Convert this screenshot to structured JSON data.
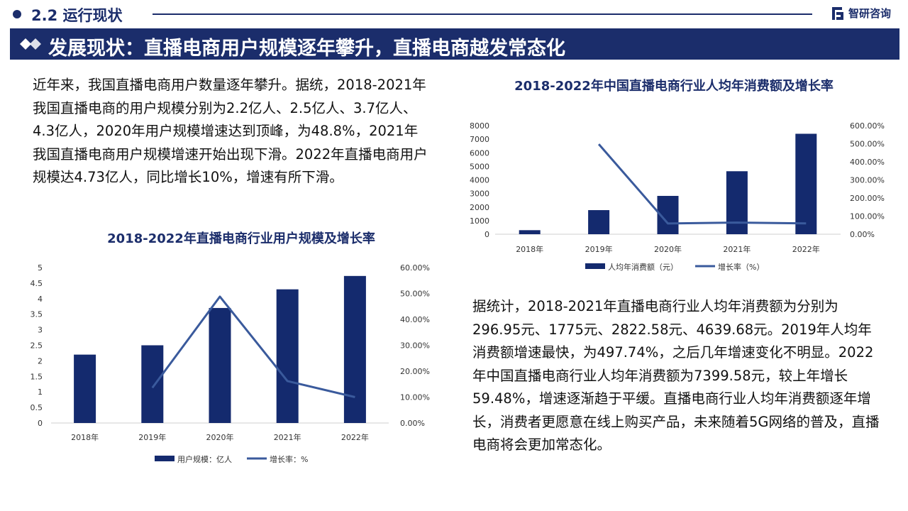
{
  "header": {
    "section_title": "2.2 运行现状",
    "brand_name": "智研咨询",
    "banner_title": "发展现状：直播电商用户规模逐年攀升，直播电商越发常态化"
  },
  "left_paragraph": "近年来，我国直播电商用户数量逐年攀升。据统，2018-2021年我国直播电商的用户规模分别为2.2亿人、2.5亿人、3.7亿人、4.3亿人，2020年用户规模增速达到顶峰，为48.8%，2021年我国直播电商用户规模增速开始出现下滑。2022年直播电商用户规模达4.73亿人，同比增长10%，增速有所下滑。",
  "right_paragraph": "据统计，2018-2021年直播电商行业人均年消费额为分别为296.95元、1775元、2822.58元、4639.68元。2019年人均年消费额增速最快，为497.74%，之后几年增速变化不明显。2022年中国直播电商行业人均年消费额为7399.58元，较上年增长59.48%，增速逐渐趋于平缓。直播电商行业人均年消费额逐年增长，消费者更愿意在线上购买产品，未来随着5G网络的普及，直播电商将会更加常态化。",
  "colors": {
    "navy": "#1b2d6b",
    "bar": "#142a6e",
    "line": "#3a5a9c"
  },
  "chart_data": [
    {
      "type": "bar",
      "title": "2018-2022年中国直播电商行业人均年消费额及增长率",
      "categories": [
        "2018年",
        "2019年",
        "2020年",
        "2021年",
        "2022年"
      ],
      "series": [
        {
          "name": "人均年消费额（元）",
          "type": "bar",
          "axis": "left",
          "values": [
            296.95,
            1775,
            2822.58,
            4639.68,
            7399.58
          ]
        },
        {
          "name": "增长率（%）",
          "type": "line",
          "axis": "right",
          "values": [
            null,
            497.74,
            59.02,
            64.38,
            59.48
          ]
        }
      ],
      "y_left": {
        "min": 0,
        "max": 8000,
        "ticks": [
          "0",
          "1000",
          "2000",
          "3000",
          "4000",
          "5000",
          "6000",
          "7000",
          "8000"
        ]
      },
      "y_right": {
        "min": 0,
        "max": 600,
        "ticks": [
          "0.00%",
          "100.00%",
          "200.00%",
          "300.00%",
          "400.00%",
          "500.00%",
          "600.00%"
        ]
      },
      "legend_position": "bottom",
      "grid": false
    },
    {
      "type": "bar",
      "title": "2018-2022年直播电商行业用户规模及增长率",
      "categories": [
        "2018年",
        "2019年",
        "2020年",
        "2021年",
        "2022年"
      ],
      "series": [
        {
          "name": "用户规模：亿人",
          "type": "bar",
          "axis": "left",
          "values": [
            2.2,
            2.5,
            3.7,
            4.3,
            4.73
          ]
        },
        {
          "name": "增长率：%",
          "type": "line",
          "axis": "right",
          "values": [
            null,
            13.6,
            48.8,
            16.2,
            10
          ]
        }
      ],
      "y_left": {
        "min": 0,
        "max": 5,
        "ticks": [
          "0",
          "0.5",
          "1",
          "1.5",
          "2",
          "2.5",
          "3",
          "3.5",
          "4",
          "4.5",
          "5"
        ]
      },
      "y_right": {
        "min": 0,
        "max": 60,
        "ticks": [
          "0.00%",
          "10.00%",
          "20.00%",
          "30.00%",
          "40.00%",
          "50.00%",
          "60.00%"
        ]
      },
      "legend_position": "bottom",
      "grid": false
    }
  ]
}
